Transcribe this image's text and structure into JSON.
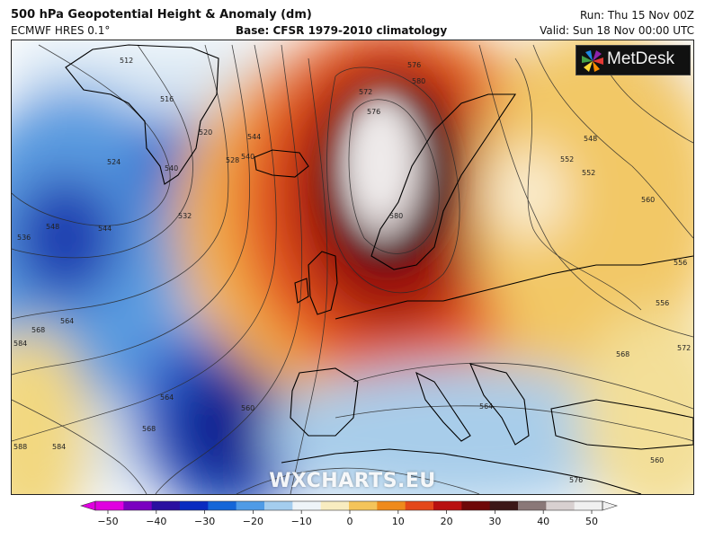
{
  "header": {
    "title": "500 hPa Geopotential Height & Anomaly (dm)",
    "model": "ECMWF HRES 0.1°",
    "base": "Base: CFSR 1979-2010 climatology",
    "run": "Run: Thu 15 Nov 00Z",
    "valid": "Valid: Sun 18 Nov 00:00 UTC"
  },
  "logo": {
    "text": "MetDesk"
  },
  "watermark": "WXCHARTS.EU",
  "contour_labels": [
    "512",
    "516",
    "520",
    "524",
    "528",
    "532",
    "536",
    "540",
    "544",
    "548",
    "552",
    "556",
    "560",
    "564",
    "568",
    "572",
    "576",
    "580",
    "584",
    "588",
    "576",
    "580",
    "584",
    "568",
    "564",
    "560",
    "548",
    "544",
    "540",
    "552",
    "556",
    "572",
    "568",
    "564",
    "560",
    "576"
  ],
  "colorbar": {
    "ticks": [
      "−50",
      "−40",
      "−30",
      "−20",
      "−10",
      "0",
      "10",
      "20",
      "30",
      "40",
      "50"
    ],
    "colors": [
      "#e000e0",
      "#7a00c0",
      "#2a10a0",
      "#0a2cc0",
      "#1466d8",
      "#4f9be6",
      "#a4cdee",
      "#eef4f8",
      "#f8ecc0",
      "#f4c45a",
      "#ef8a1c",
      "#e4481a",
      "#b81010",
      "#6e0808",
      "#3c1818",
      "#8a7878",
      "#d8d0d0",
      "#f0f0f0"
    ]
  }
}
